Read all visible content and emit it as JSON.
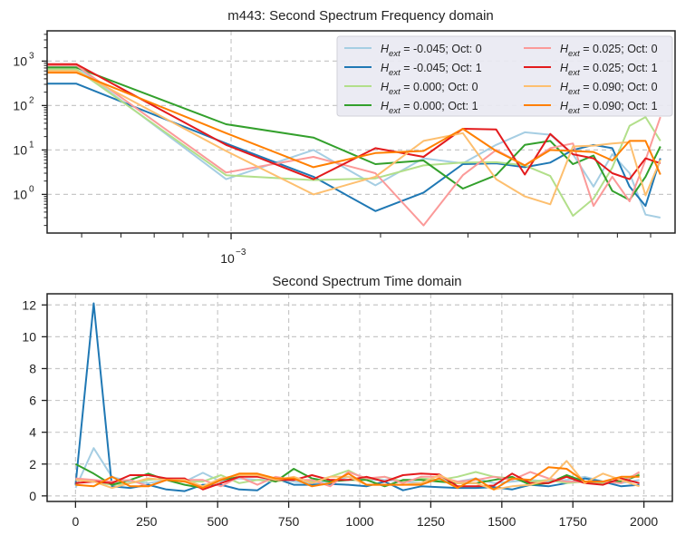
{
  "chart_data": [
    {
      "type": "line",
      "title": "m443: Second Spectrum Frequency domain",
      "xscale": "log",
      "yscale": "log",
      "xlim": [
        0.000426,
        0.00784
      ],
      "ylim": [
        0.135,
        4800
      ],
      "xlabel": "",
      "ylabel": "",
      "x_tick_labels": [
        {
          "value": 0.001,
          "base": "10",
          "exp": "−3"
        }
      ],
      "y_tick_labels": [
        {
          "value": 1,
          "base": "10",
          "exp": "0"
        },
        {
          "value": 10,
          "base": "10",
          "exp": "1"
        },
        {
          "value": 100,
          "base": "10",
          "exp": "2"
        },
        {
          "value": 1000,
          "base": "10",
          "exp": "3"
        }
      ],
      "grid": true,
      "legend_position": "top-right",
      "legend_columns": 2,
      "x": [
        0.000426,
        0.000488,
        0.000977,
        0.001465,
        0.001953,
        0.002441,
        0.00293,
        0.003418,
        0.003906,
        0.004395,
        0.004883,
        0.005371,
        0.005859,
        0.006348,
        0.006836,
        0.007324
      ],
      "series": [
        {
          "name": "-0.045; Oct: 0",
          "label_prefix": "H",
          "label_sub": "ext",
          "label_value": " = -0.045; Oct: 0",
          "color": "#a6cee3",
          "values": [
            750,
            750,
            2.2,
            10,
            1.6,
            6.5,
            5.0,
            13,
            25,
            22,
            8,
            1.5,
            8,
            3,
            0.35,
            0.3
          ]
        },
        {
          "name": "-0.045; Oct: 1",
          "label_prefix": "H",
          "label_sub": "ext",
          "label_value": " = -0.045; Oct: 1",
          "color": "#1f78b4",
          "values": [
            310,
            310,
            14,
            2.5,
            0.42,
            1.1,
            4.8,
            5.0,
            4.1,
            5.2,
            10,
            13,
            11,
            1.5,
            0.55,
            6.5
          ]
        },
        {
          "name": "0.000; Oct: 0",
          "label_prefix": "H",
          "label_sub": "ext",
          "label_value": " = 0.000; Oct: 0",
          "color": "#b2df8a",
          "values": [
            650,
            650,
            2.7,
            2.1,
            2.3,
            4.5,
            5.2,
            5.3,
            4.5,
            2.6,
            0.33,
            0.8,
            4,
            35,
            55,
            16
          ]
        },
        {
          "name": "0.000; Oct: 1",
          "label_prefix": "H",
          "label_sub": "ext",
          "label_value": " = 0.000; Oct: 1",
          "color": "#33a02c",
          "values": [
            720,
            720,
            38,
            19,
            4.8,
            5.8,
            1.35,
            2.7,
            13,
            16,
            4.8,
            7.5,
            1.2,
            0.75,
            2.5,
            12
          ]
        },
        {
          "name": "0.025; Oct: 0",
          "label_prefix": "H",
          "label_sub": "ext",
          "label_value": " = 0.025; Oct: 0",
          "color": "#fb9a99",
          "values": [
            800,
            800,
            3.1,
            7,
            3.0,
            0.2,
            2.7,
            10,
            4.5,
            11,
            14,
            0.55,
            2.5,
            0.7,
            6,
            55
          ]
        },
        {
          "name": "0.025; Oct: 1",
          "label_prefix": "H",
          "label_sub": "ext",
          "label_value": " = 0.025; Oct: 1",
          "color": "#e31a1c",
          "values": [
            850,
            850,
            13,
            2.2,
            11,
            7,
            30,
            29,
            2.8,
            23,
            8,
            6.5,
            3,
            2.2,
            6.5,
            5
          ]
        },
        {
          "name": "0.090; Oct: 0",
          "label_prefix": "H",
          "label_sub": "ext",
          "label_value": " = 0.090; Oct: 0",
          "color": "#fdbf6f",
          "values": [
            600,
            600,
            9.5,
            1.0,
            2.5,
            16,
            24,
            2.2,
            0.9,
            0.6,
            12,
            12.5,
            14,
            15,
            0.95,
            6
          ]
        },
        {
          "name": "0.090; Oct: 1",
          "label_prefix": "H",
          "label_sub": "ext",
          "label_value": " = 0.090; Oct: 1",
          "color": "#ff7f00",
          "values": [
            550,
            550,
            24,
            4.1,
            8.5,
            9.5,
            30,
            9.5,
            4.5,
            10,
            9.5,
            9,
            5.8,
            16,
            16,
            2.8
          ]
        }
      ]
    },
    {
      "type": "line",
      "title": "Second Spectrum Time domain",
      "xscale": "linear",
      "yscale": "linear",
      "xlim": [
        -100,
        2100
      ],
      "ylim": [
        -0.35,
        12.7
      ],
      "xlabel": "",
      "ylabel": "",
      "x_ticks": [
        0,
        250,
        500,
        750,
        1000,
        1250,
        1500,
        1750,
        2000
      ],
      "y_ticks": [
        0,
        2,
        4,
        6,
        8,
        10,
        12
      ],
      "grid": true,
      "x": [
        0,
        64,
        128,
        192,
        256,
        320,
        384,
        448,
        512,
        576,
        640,
        704,
        768,
        832,
        896,
        960,
        1024,
        1088,
        1152,
        1216,
        1280,
        1344,
        1408,
        1472,
        1536,
        1600,
        1664,
        1728,
        1792,
        1856,
        1920,
        1984
      ],
      "series": [
        {
          "name": "-0.045; Oct: 0",
          "color": "#a6cee3",
          "values": [
            0.5,
            3.0,
            1.2,
            0.9,
            0.8,
            1.0,
            0.9,
            1.45,
            0.9,
            1.1,
            1.0,
            1.1,
            0.9,
            0.8,
            0.9,
            1.2,
            1.0,
            1.0,
            0.9,
            0.8,
            1.0,
            0.9,
            1.1,
            0.8,
            0.9,
            1.0,
            0.9,
            1.0,
            1.2,
            0.9,
            0.8,
            1.0
          ]
        },
        {
          "name": "-0.045; Oct: 1",
          "color": "#1f78b4",
          "values": [
            0.7,
            12.1,
            0.6,
            0.5,
            0.7,
            0.4,
            0.3,
            0.7,
            0.7,
            0.4,
            0.35,
            1.1,
            0.7,
            0.7,
            0.75,
            0.7,
            0.6,
            0.9,
            0.35,
            0.6,
            0.55,
            0.5,
            0.5,
            0.55,
            0.4,
            0.7,
            0.6,
            0.8,
            1.1,
            0.9,
            0.6,
            0.7
          ]
        },
        {
          "name": "0.000; Oct: 0",
          "color": "#b2df8a",
          "values": [
            1.0,
            0.9,
            0.7,
            0.8,
            1.0,
            1.1,
            0.9,
            0.9,
            1.3,
            0.8,
            1.0,
            0.9,
            1.1,
            0.9,
            1.2,
            1.6,
            1.0,
            1.2,
            0.9,
            1.1,
            1.0,
            1.2,
            1.5,
            1.2,
            1.1,
            0.9,
            1.0,
            0.8,
            0.9,
            0.8,
            1.0,
            1.4
          ]
        },
        {
          "name": "0.000; Oct: 1",
          "color": "#33a02c",
          "values": [
            2.0,
            1.4,
            0.7,
            1.0,
            1.4,
            1.0,
            0.7,
            0.5,
            1.0,
            1.2,
            1.3,
            0.9,
            1.7,
            1.1,
            0.9,
            1.0,
            1.0,
            0.6,
            1.0,
            1.0,
            0.9,
            0.8,
            0.8,
            1.0,
            1.2,
            0.7,
            0.8,
            1.3,
            0.9,
            0.9,
            0.9,
            1.3
          ]
        },
        {
          "name": "0.025; Oct: 0",
          "color": "#fb9a99",
          "values": [
            1.1,
            1.0,
            0.9,
            1.0,
            0.6,
            1.0,
            1.0,
            1.0,
            0.6,
            1.2,
            0.7,
            1.2,
            1.0,
            1.0,
            0.6,
            1.5,
            1.1,
            1.2,
            0.8,
            1.2,
            1.2,
            0.9,
            1.0,
            1.2,
            1.0,
            1.5,
            1.1,
            0.9,
            0.9,
            0.9,
            0.8,
            1.5
          ]
        },
        {
          "name": "0.025; Oct: 1",
          "color": "#e31a1c",
          "values": [
            0.8,
            0.9,
            0.8,
            1.3,
            1.3,
            1.1,
            1.1,
            0.4,
            0.8,
            1.2,
            1.2,
            1.0,
            1.0,
            1.3,
            1.0,
            1.0,
            1.2,
            0.9,
            1.3,
            1.4,
            1.35,
            0.6,
            0.6,
            0.65,
            1.4,
            0.8,
            0.8,
            1.2,
            0.8,
            0.7,
            1.1,
            0.8
          ]
        },
        {
          "name": "0.090; Oct: 0",
          "color": "#fdbf6f",
          "values": [
            1.0,
            0.9,
            0.5,
            0.8,
            1.1,
            1.0,
            1.0,
            0.6,
            1.1,
            1.3,
            1.3,
            1.0,
            1.2,
            0.8,
            1.2,
            1.2,
            0.7,
            0.7,
            0.7,
            0.8,
            1.3,
            0.8,
            0.8,
            0.4,
            0.6,
            0.7,
            1.0,
            2.2,
            0.8,
            1.4,
            1.0,
            0.6
          ]
        },
        {
          "name": "0.090; Oct: 1",
          "color": "#ff7f00",
          "values": [
            0.7,
            0.6,
            1.2,
            0.6,
            0.6,
            1.0,
            0.9,
            0.5,
            1.0,
            1.4,
            1.4,
            1.1,
            1.1,
            0.6,
            0.8,
            1.4,
            0.7,
            0.7,
            0.7,
            0.7,
            1.1,
            0.5,
            1.1,
            0.4,
            1.1,
            1.0,
            1.8,
            1.7,
            0.9,
            0.9,
            1.2,
            1.2
          ]
        }
      ]
    }
  ]
}
